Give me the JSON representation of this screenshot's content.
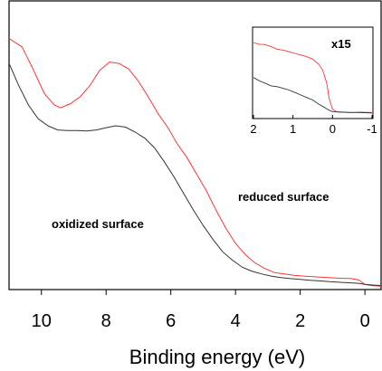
{
  "chart_data": [
    {
      "type": "line",
      "title": "",
      "xlabel": "Binding energy (eV)",
      "ylabel": "",
      "xlim": [
        11,
        -0.5
      ],
      "x_reversed": true,
      "xticks": [
        "10",
        "8",
        "6",
        "4",
        "2",
        "0"
      ],
      "grid": false,
      "annotations": [
        "reduced surface",
        "oxidized surface"
      ],
      "colors": {
        "reduced": "#ff3333",
        "oxidized": "#333333"
      },
      "series": [
        {
          "key": "reduced",
          "x": [
            11.0,
            10.6,
            10.3,
            9.9,
            9.6,
            9.4,
            9.1,
            8.8,
            8.5,
            8.2,
            7.9,
            7.6,
            7.3,
            7.0,
            6.7,
            6.4,
            6.1,
            5.8,
            5.5,
            5.2,
            4.9,
            4.6,
            4.3,
            4.0,
            3.7,
            3.4,
            3.1,
            2.8,
            2.5,
            2.2,
            1.9,
            1.6,
            1.3,
            1.0,
            0.7,
            0.4,
            0.2,
            0.0,
            -0.2,
            -0.5
          ],
          "y": [
            0.9,
            0.87,
            0.8,
            0.7,
            0.66,
            0.65,
            0.665,
            0.69,
            0.73,
            0.785,
            0.815,
            0.81,
            0.79,
            0.745,
            0.69,
            0.63,
            0.58,
            0.52,
            0.47,
            0.41,
            0.35,
            0.28,
            0.215,
            0.16,
            0.12,
            0.09,
            0.07,
            0.055,
            0.05,
            0.045,
            0.042,
            0.04,
            0.038,
            0.036,
            0.034,
            0.033,
            0.028,
            0.012,
            0.008,
            0.006
          ]
        },
        {
          "key": "oxidized",
          "x": [
            11.0,
            10.7,
            10.4,
            10.1,
            9.8,
            9.5,
            9.2,
            8.9,
            8.6,
            8.3,
            8.0,
            7.7,
            7.4,
            7.1,
            6.8,
            6.5,
            6.2,
            5.9,
            5.6,
            5.3,
            5.0,
            4.7,
            4.4,
            4.1,
            3.8,
            3.5,
            3.2,
            2.9,
            2.6,
            2.3,
            2.0,
            1.7,
            1.4,
            1.1,
            0.8,
            0.5,
            0.2,
            0.0,
            -0.2,
            -0.5
          ],
          "y": [
            0.81,
            0.73,
            0.66,
            0.61,
            0.585,
            0.57,
            0.568,
            0.568,
            0.566,
            0.57,
            0.578,
            0.585,
            0.58,
            0.562,
            0.54,
            0.505,
            0.455,
            0.4,
            0.34,
            0.28,
            0.225,
            0.175,
            0.13,
            0.1,
            0.075,
            0.06,
            0.05,
            0.042,
            0.037,
            0.033,
            0.03,
            0.027,
            0.025,
            0.022,
            0.02,
            0.018,
            0.016,
            0.012,
            0.01,
            0.008
          ]
        }
      ]
    },
    {
      "type": "line",
      "title": "",
      "xlabel": "",
      "ylabel": "",
      "xlim": [
        2,
        -1
      ],
      "x_reversed": true,
      "xticks": [
        "2",
        "1",
        "0",
        "-1"
      ],
      "grid": false,
      "annotations": [
        "x15"
      ],
      "series": [
        {
          "key": "reduced",
          "x": [
            2.0,
            1.85,
            1.7,
            1.55,
            1.4,
            1.25,
            1.1,
            0.95,
            0.8,
            0.65,
            0.5,
            0.35,
            0.25,
            0.15,
            0.08,
            0.0,
            -0.1,
            -0.3,
            -0.5,
            -0.7,
            -1.0
          ],
          "y": [
            0.88,
            0.86,
            0.855,
            0.83,
            0.8,
            0.79,
            0.77,
            0.75,
            0.73,
            0.71,
            0.68,
            0.62,
            0.55,
            0.4,
            0.2,
            0.08,
            0.05,
            0.045,
            0.04,
            0.045,
            0.04
          ]
        },
        {
          "key": "oxidized",
          "x": [
            2.0,
            1.85,
            1.7,
            1.55,
            1.4,
            1.25,
            1.1,
            0.95,
            0.8,
            0.65,
            0.5,
            0.35,
            0.2,
            0.1,
            0.0,
            -0.2,
            -0.4,
            -0.6,
            -0.8,
            -1.0
          ],
          "y": [
            0.46,
            0.42,
            0.39,
            0.36,
            0.35,
            0.33,
            0.31,
            0.28,
            0.25,
            0.22,
            0.19,
            0.14,
            0.1,
            0.07,
            0.05,
            0.045,
            0.04,
            0.04,
            0.038,
            0.035
          ]
        }
      ]
    }
  ]
}
